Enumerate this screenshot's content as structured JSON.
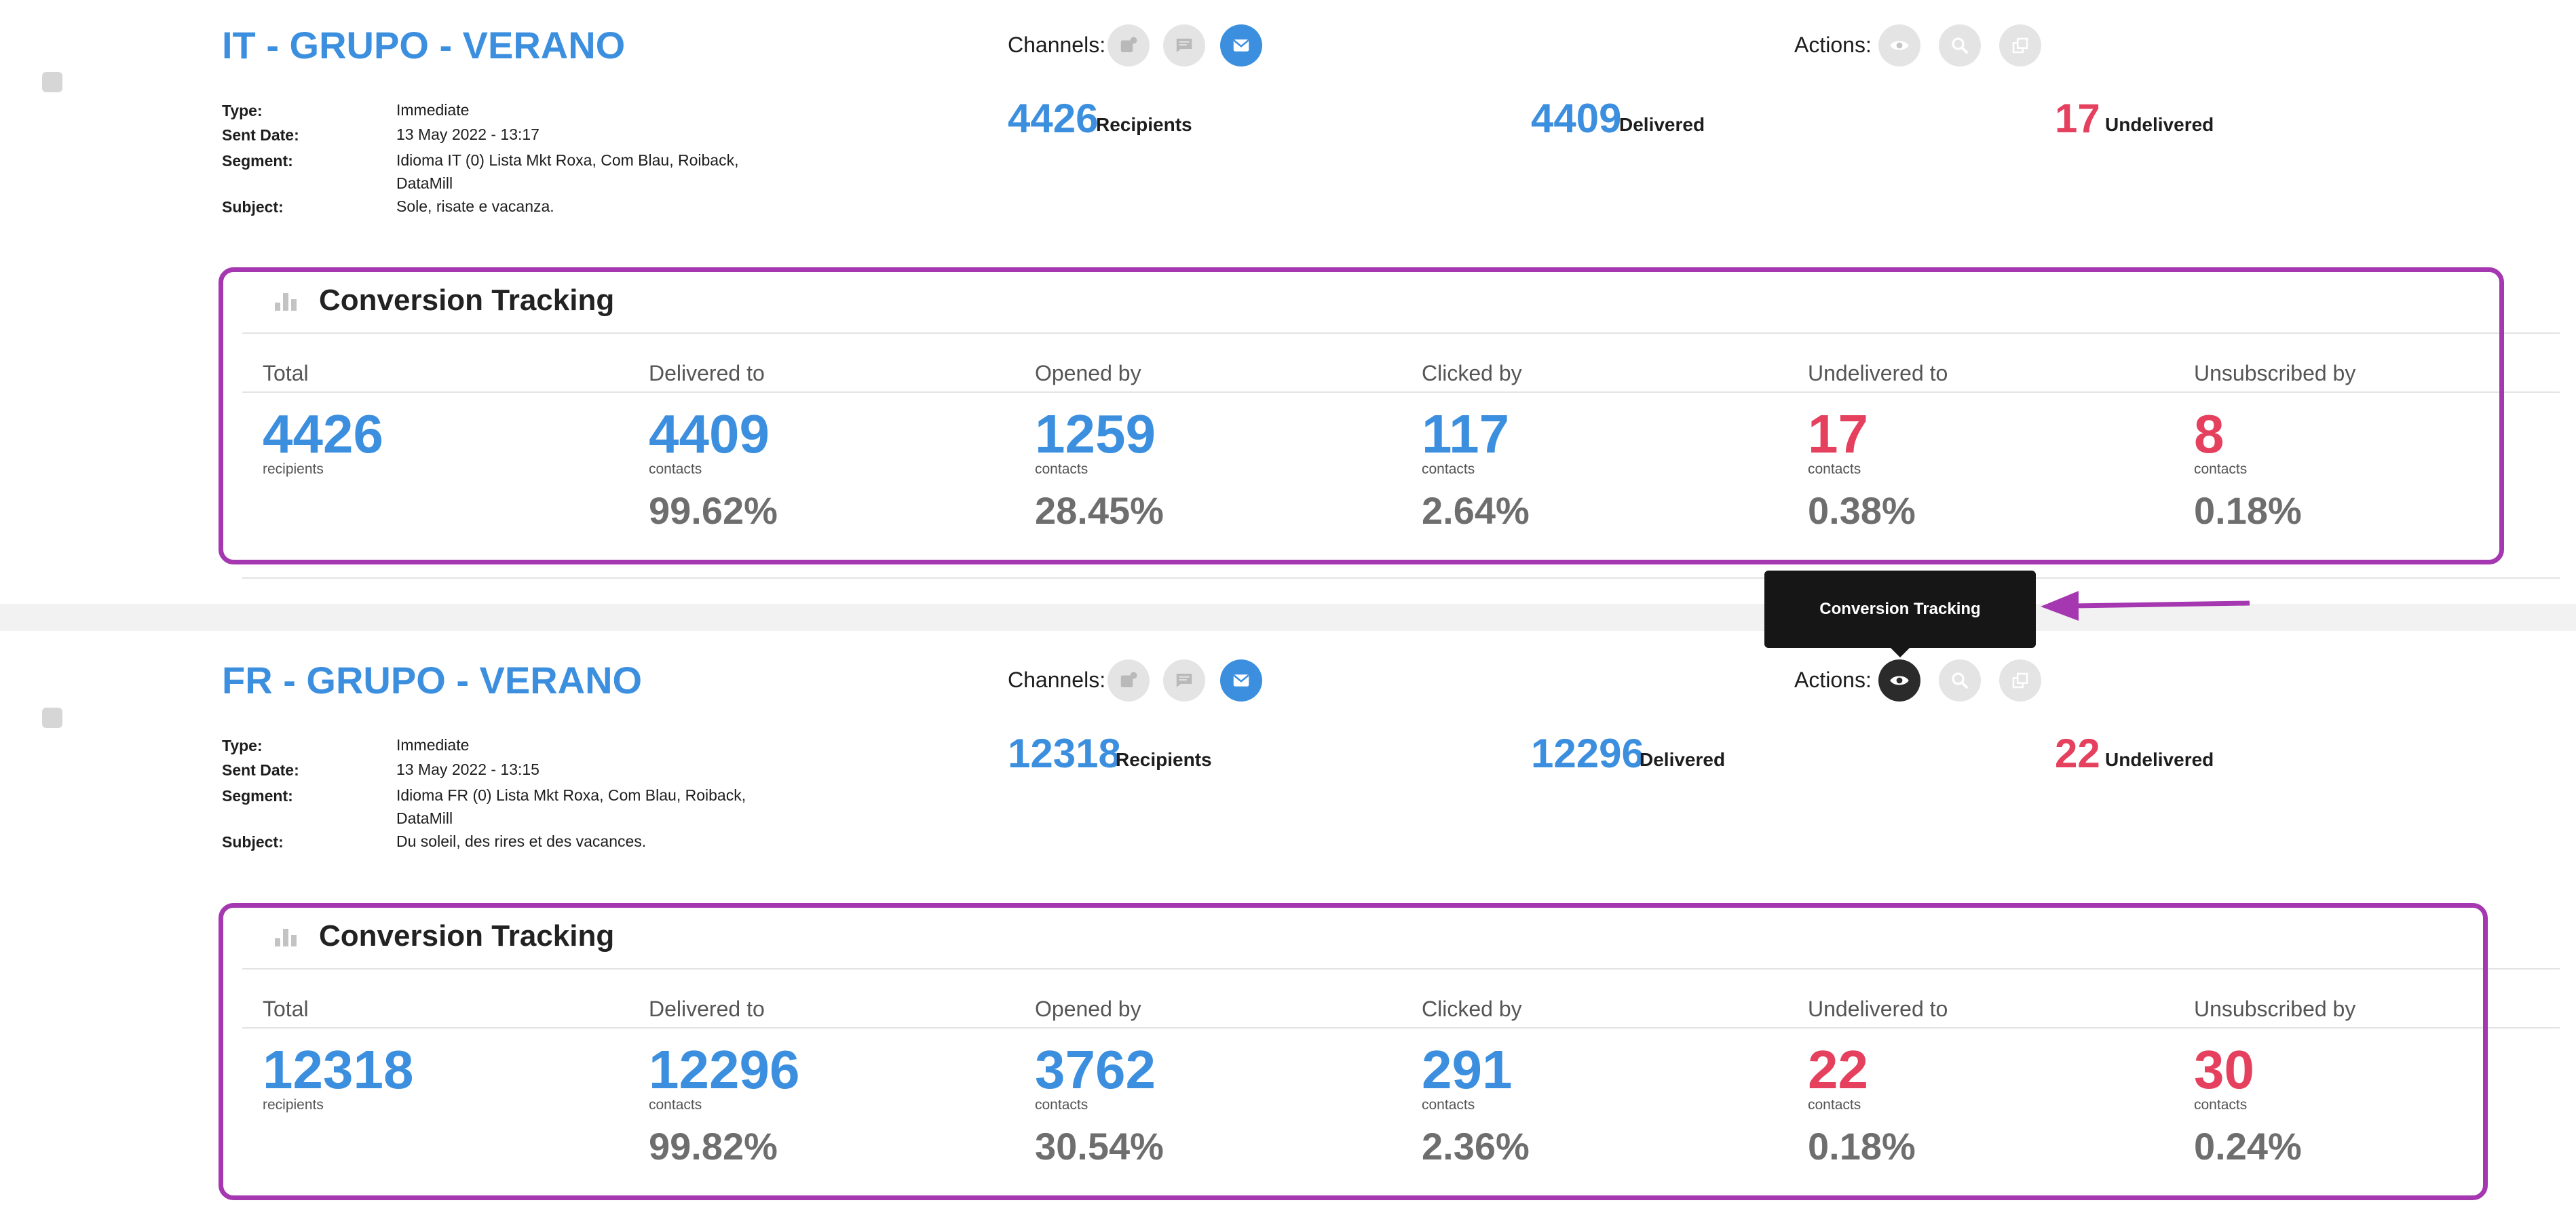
{
  "campaigns": [
    {
      "title": "IT - GRUPO - VERANO",
      "type_label": "Type:",
      "type": "Immediate",
      "sent_label": "Sent Date:",
      "sent_date": "13 May 2022 - 13:17",
      "segment_label": "Segment:",
      "segment_line1": "Idioma IT (0) Lista Mkt Roxa, Com Blau, Roiback,",
      "segment_line2": "DataMill",
      "subject_label": "Subject:",
      "subject": "Sole, risate e vacanza.",
      "channels_label": "Channels:",
      "actions_label": "Actions:",
      "recipients": "4426",
      "recipients_label": "Recipients",
      "delivered": "4409",
      "delivered_label": "Delivered",
      "undelivered": "17",
      "undelivered_label": "Undelivered",
      "ct": {
        "title": "Conversion Tracking",
        "total_head": "Total",
        "total": "4426",
        "total_unit": "recipients",
        "delivered_head": "Delivered to",
        "delivered": "4409",
        "delivered_unit": "contacts",
        "delivered_pct": "99.62%",
        "opened_head": "Opened by",
        "opened": "1259",
        "opened_unit": "contacts",
        "opened_pct": "28.45%",
        "clicked_head": "Clicked by",
        "clicked": "117",
        "clicked_unit": "contacts",
        "clicked_pct": "2.64%",
        "undelivered_head": "Undelivered to",
        "undelivered": "17",
        "undelivered_unit": "contacts",
        "undelivered_pct": "0.38%",
        "unsub_head": "Unsubscribed by",
        "unsub": "8",
        "unsub_unit": "contacts",
        "unsub_pct": "0.18%"
      }
    },
    {
      "title": "FR - GRUPO - VERANO",
      "type_label": "Type:",
      "type": "Immediate",
      "sent_label": "Sent Date:",
      "sent_date": "13 May 2022 - 13:15",
      "segment_label": "Segment:",
      "segment_line1": "Idioma FR (0) Lista Mkt Roxa, Com Blau, Roiback,",
      "segment_line2": "DataMill",
      "subject_label": "Subject:",
      "subject": "Du soleil, des rires et des vacances.",
      "channels_label": "Channels:",
      "actions_label": "Actions:",
      "recipients": "12318",
      "recipients_label": "Recipients",
      "delivered": "12296",
      "delivered_label": "Delivered",
      "undelivered": "22",
      "undelivered_label": "Undelivered",
      "ct": {
        "title": "Conversion Tracking",
        "total_head": "Total",
        "total": "12318",
        "total_unit": "recipients",
        "delivered_head": "Delivered to",
        "delivered": "12296",
        "delivered_unit": "contacts",
        "delivered_pct": "99.82%",
        "opened_head": "Opened by",
        "opened": "3762",
        "opened_unit": "contacts",
        "opened_pct": "30.54%",
        "clicked_head": "Clicked by",
        "clicked": "291",
        "clicked_unit": "contacts",
        "clicked_pct": "2.36%",
        "undelivered_head": "Undelivered to",
        "undelivered": "22",
        "undelivered_unit": "contacts",
        "undelivered_pct": "0.18%",
        "unsub_head": "Unsubscribed by",
        "unsub": "30",
        "unsub_unit": "contacts",
        "unsub_pct": "0.24%"
      }
    }
  ],
  "tooltip": {
    "text": "Conversion Tracking"
  },
  "colors": {
    "accent_blue": "#3b8fde",
    "alert_red": "#e5405e",
    "highlight_purple": "#a537b0",
    "tooltip_bg": "#161616"
  },
  "icons": {
    "channels": [
      "push-notification-icon",
      "sms-chat-icon",
      "email-envelope-icon"
    ],
    "actions": [
      "eye-icon",
      "magnifier-search-icon",
      "duplicate-copy-icon"
    ],
    "ct_header": "bar-chart-icon"
  }
}
